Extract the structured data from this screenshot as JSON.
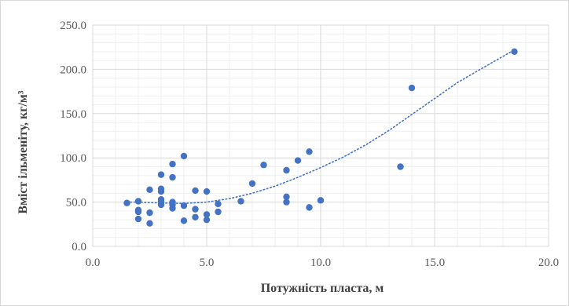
{
  "chart_data": {
    "type": "scatter",
    "title": "",
    "xlabel": "Потужність пласта, м",
    "ylabel": "Вміст ільменіту, кг/м³",
    "xlim": [
      0,
      20
    ],
    "ylim": [
      0,
      250
    ],
    "x_ticks": [
      "0.0",
      "5.0",
      "10.0",
      "15.0",
      "20.0"
    ],
    "y_ticks": [
      "0.0",
      "50.0",
      "100.0",
      "150.0",
      "200.0",
      "250.0"
    ],
    "grid": true,
    "legend": "none",
    "colors": {
      "points": "#4472c4",
      "trendline": "#4472c4",
      "grid_major": "#d9d9d9",
      "grid_minor": "#efefef",
      "axis_text": "#595959",
      "axis_title": "#404040"
    },
    "series": [
      {
        "points": [
          [
            1.5,
            49
          ],
          [
            2,
            51
          ],
          [
            2,
            41
          ],
          [
            2,
            39
          ],
          [
            2,
            31
          ],
          [
            2.5,
            64
          ],
          [
            2.5,
            38
          ],
          [
            2.5,
            26
          ],
          [
            3,
            81
          ],
          [
            3,
            65
          ],
          [
            3,
            62
          ],
          [
            3,
            53
          ],
          [
            3,
            50
          ],
          [
            3,
            47
          ],
          [
            3.5,
            93
          ],
          [
            3.5,
            78
          ],
          [
            3.5,
            50
          ],
          [
            3.5,
            47
          ],
          [
            3.5,
            43
          ],
          [
            4,
            102
          ],
          [
            4,
            46
          ],
          [
            4,
            29
          ],
          [
            4.5,
            63
          ],
          [
            4.5,
            42
          ],
          [
            4.5,
            33
          ],
          [
            5,
            62
          ],
          [
            5,
            36
          ],
          [
            5,
            30
          ],
          [
            5.5,
            48
          ],
          [
            5.5,
            39
          ],
          [
            6.5,
            51
          ],
          [
            7,
            71
          ],
          [
            7.5,
            92
          ],
          [
            8.5,
            86
          ],
          [
            8.5,
            56
          ],
          [
            8.5,
            50
          ],
          [
            9,
            97
          ],
          [
            9.5,
            107
          ],
          [
            9.5,
            44
          ],
          [
            10,
            52
          ],
          [
            13.5,
            90
          ],
          [
            14,
            179
          ],
          [
            18.5,
            220
          ]
        ]
      }
    ],
    "trendline": {
      "type": "polynomial",
      "style": "dotted",
      "samples": [
        [
          1.5,
          50
        ],
        [
          2,
          50
        ],
        [
          3,
          49
        ],
        [
          4,
          48.5
        ],
        [
          5,
          50
        ],
        [
          6,
          54
        ],
        [
          7,
          60
        ],
        [
          8,
          68
        ],
        [
          9,
          78
        ],
        [
          10,
          89
        ],
        [
          11,
          101
        ],
        [
          12,
          115
        ],
        [
          13,
          131
        ],
        [
          14,
          149
        ],
        [
          15,
          167
        ],
        [
          16,
          185
        ],
        [
          17,
          200
        ],
        [
          18.5,
          222
        ]
      ]
    }
  }
}
